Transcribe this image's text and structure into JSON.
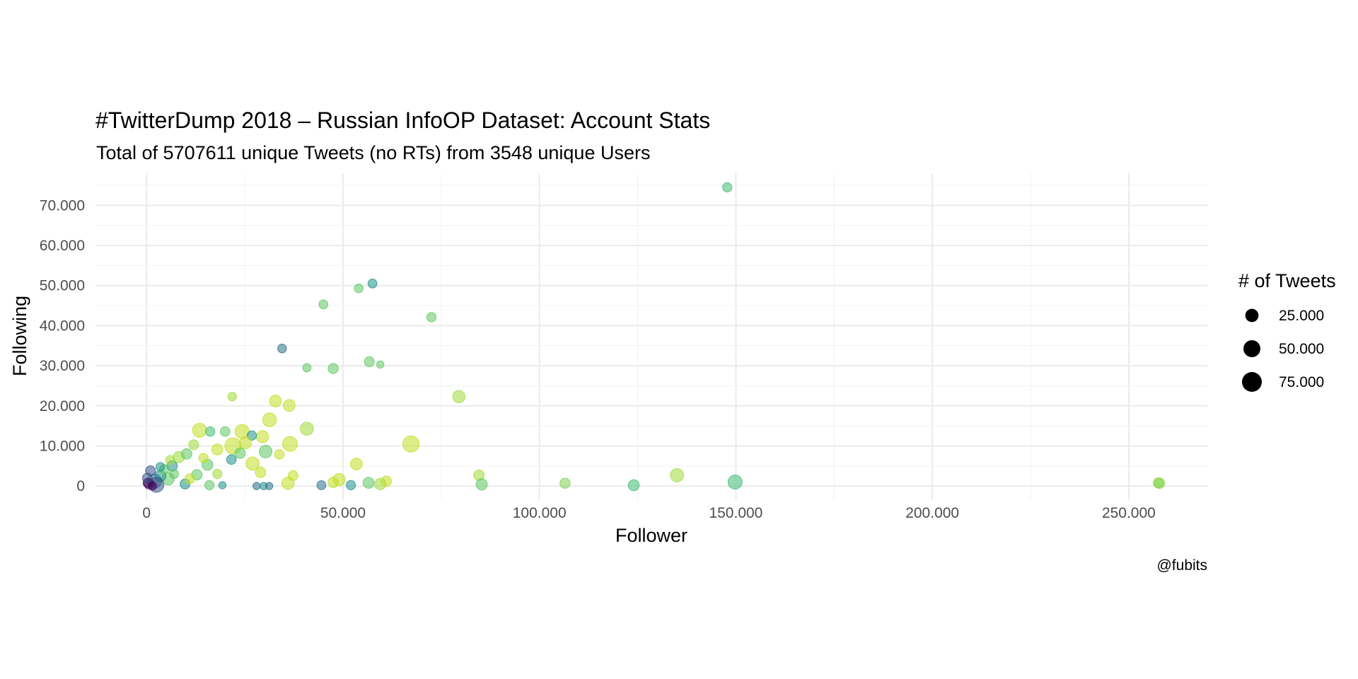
{
  "chart_data": {
    "type": "scatter",
    "title": "#TwitterDump 2018 – Russian InfoOP Dataset: Account Stats",
    "subtitle": "Total of 5707611 unique Tweets (no RTs) from 3548 unique Users",
    "xlabel": "Follower",
    "ylabel": "Following",
    "caption": "@fubits",
    "xlim": [
      -13000,
      270000
    ],
    "ylim": [
      -3500,
      78000
    ],
    "x_ticks": [
      0,
      50000,
      100000,
      150000,
      200000,
      250000
    ],
    "x_tick_labels": [
      "0",
      "50.000",
      "100.000",
      "150.000",
      "200.000",
      "250.000"
    ],
    "y_ticks": [
      0,
      10000,
      20000,
      30000,
      40000,
      50000,
      60000,
      70000
    ],
    "y_tick_labels": [
      "0",
      "10.000",
      "20.000",
      "30.000",
      "40.000",
      "50.000",
      "60.000",
      "70.000"
    ],
    "grid": true,
    "legend": {
      "title": "# of Tweets",
      "position": "right",
      "sizes": [
        25000,
        50000,
        75000
      ],
      "labels": [
        "25.000",
        "50.000",
        "75.000"
      ]
    },
    "color_scale": [
      "#440154",
      "#3b528b",
      "#21918c",
      "#5ec962",
      "#c2df23"
    ],
    "points": [
      {
        "x": 147800,
        "y": 74500,
        "size": 8000,
        "color": "#3fbc73"
      },
      {
        "x": 57500,
        "y": 50500,
        "size": 7000,
        "color": "#21918c"
      },
      {
        "x": 54000,
        "y": 49300,
        "size": 6500,
        "color": "#5ec962"
      },
      {
        "x": 45000,
        "y": 45300,
        "size": 7000,
        "color": "#5ec962"
      },
      {
        "x": 72500,
        "y": 42100,
        "size": 8000,
        "color": "#5ec962"
      },
      {
        "x": 34500,
        "y": 34300,
        "size": 6500,
        "color": "#2c728e"
      },
      {
        "x": 56700,
        "y": 31000,
        "size": 10000,
        "color": "#5ec962"
      },
      {
        "x": 59500,
        "y": 30300,
        "size": 3000,
        "color": "#5ec962"
      },
      {
        "x": 40800,
        "y": 29500,
        "size": 5500,
        "color": "#5ec962"
      },
      {
        "x": 47500,
        "y": 29300,
        "size": 11000,
        "color": "#5ec962"
      },
      {
        "x": 79500,
        "y": 22300,
        "size": 20000,
        "color": "#a0da39"
      },
      {
        "x": 21800,
        "y": 22300,
        "size": 6000,
        "color": "#a0da39"
      },
      {
        "x": 32800,
        "y": 21200,
        "size": 18000,
        "color": "#c2df23"
      },
      {
        "x": 36300,
        "y": 20100,
        "size": 18000,
        "color": "#c2df23"
      },
      {
        "x": 31300,
        "y": 16500,
        "size": 28000,
        "color": "#c2df23"
      },
      {
        "x": 40800,
        "y": 14300,
        "size": 24000,
        "color": "#a0da39"
      },
      {
        "x": 13500,
        "y": 13900,
        "size": 30000,
        "color": "#c2df23"
      },
      {
        "x": 24300,
        "y": 13600,
        "size": 30000,
        "color": "#c2df23"
      },
      {
        "x": 16200,
        "y": 13600,
        "size": 8000,
        "color": "#3fbc73"
      },
      {
        "x": 20000,
        "y": 13600,
        "size": 9000,
        "color": "#5ec962"
      },
      {
        "x": 29500,
        "y": 12300,
        "size": 20000,
        "color": "#c2df23"
      },
      {
        "x": 26800,
        "y": 12600,
        "size": 8000,
        "color": "#21918c"
      },
      {
        "x": 67300,
        "y": 10500,
        "size": 45000,
        "color": "#c2df23"
      },
      {
        "x": 36500,
        "y": 10500,
        "size": 35000,
        "color": "#c2df23"
      },
      {
        "x": 22000,
        "y": 10000,
        "size": 45000,
        "color": "#c2df23"
      },
      {
        "x": 25200,
        "y": 10800,
        "size": 20000,
        "color": "#c2df23"
      },
      {
        "x": 12000,
        "y": 10300,
        "size": 10000,
        "color": "#a0da39"
      },
      {
        "x": 30300,
        "y": 8600,
        "size": 22000,
        "color": "#5ec962"
      },
      {
        "x": 33800,
        "y": 7900,
        "size": 9000,
        "color": "#c2df23"
      },
      {
        "x": 18000,
        "y": 9100,
        "size": 14000,
        "color": "#c2df23"
      },
      {
        "x": 8200,
        "y": 7200,
        "size": 15000,
        "color": "#a0da39"
      },
      {
        "x": 10200,
        "y": 8000,
        "size": 12000,
        "color": "#5ec962"
      },
      {
        "x": 27000,
        "y": 5600,
        "size": 25000,
        "color": "#c2df23"
      },
      {
        "x": 21600,
        "y": 6600,
        "size": 9000,
        "color": "#21918c"
      },
      {
        "x": 15500,
        "y": 5300,
        "size": 14000,
        "color": "#5ec962"
      },
      {
        "x": 6500,
        "y": 5000,
        "size": 12000,
        "color": "#21918c"
      },
      {
        "x": 53400,
        "y": 5500,
        "size": 18000,
        "color": "#c2df23"
      },
      {
        "x": 12800,
        "y": 2800,
        "size": 12000,
        "color": "#5ec962"
      },
      {
        "x": 29000,
        "y": 3400,
        "size": 12000,
        "color": "#c2df23"
      },
      {
        "x": 37300,
        "y": 2600,
        "size": 10000,
        "color": "#c2df23"
      },
      {
        "x": 84600,
        "y": 2700,
        "size": 12000,
        "color": "#a0da39"
      },
      {
        "x": 135000,
        "y": 2700,
        "size": 25000,
        "color": "#a0da39"
      },
      {
        "x": 149800,
        "y": 1000,
        "size": 30000,
        "color": "#3fbc73"
      },
      {
        "x": 257500,
        "y": 800,
        "size": 10000,
        "color": "#a0da39"
      },
      {
        "x": 257800,
        "y": 700,
        "size": 12000,
        "color": "#7ad151"
      },
      {
        "x": 106500,
        "y": 700,
        "size": 11000,
        "color": "#7ad151"
      },
      {
        "x": 124000,
        "y": 200,
        "size": 14000,
        "color": "#3fbc73"
      },
      {
        "x": 85300,
        "y": 400,
        "size": 15000,
        "color": "#5ec962"
      },
      {
        "x": 49000,
        "y": 1600,
        "size": 20000,
        "color": "#c2df23"
      },
      {
        "x": 56500,
        "y": 800,
        "size": 14000,
        "color": "#5ec962"
      },
      {
        "x": 59500,
        "y": 500,
        "size": 16000,
        "color": "#a0da39"
      },
      {
        "x": 61000,
        "y": 1200,
        "size": 12000,
        "color": "#c2df23"
      },
      {
        "x": 52000,
        "y": 200,
        "size": 8000,
        "color": "#21918c"
      },
      {
        "x": 44500,
        "y": 200,
        "size": 7000,
        "color": "#2c728e"
      },
      {
        "x": 36000,
        "y": 700,
        "size": 20000,
        "color": "#c2df23"
      },
      {
        "x": 47500,
        "y": 900,
        "size": 12000,
        "color": "#c2df23"
      },
      {
        "x": 28000,
        "y": 0,
        "size": 3000,
        "color": "#2c728e"
      },
      {
        "x": 29800,
        "y": 0,
        "size": 3000,
        "color": "#21918c"
      },
      {
        "x": 31200,
        "y": 0,
        "size": 3000,
        "color": "#2c728e"
      },
      {
        "x": 19300,
        "y": 200,
        "size": 3000,
        "color": "#21918c"
      },
      {
        "x": 16000,
        "y": 200,
        "size": 8000,
        "color": "#5ec962"
      },
      {
        "x": 9800,
        "y": 500,
        "size": 10000,
        "color": "#21918c"
      },
      {
        "x": 5500,
        "y": 1800,
        "size": 20000,
        "color": "#5ec962"
      },
      {
        "x": 3500,
        "y": 2500,
        "size": 15000,
        "color": "#21918c"
      },
      {
        "x": 2000,
        "y": 1200,
        "size": 30000,
        "color": "#2c728e"
      },
      {
        "x": 1000,
        "y": 3800,
        "size": 10000,
        "color": "#3b528b"
      },
      {
        "x": 4500,
        "y": 4200,
        "size": 8000,
        "color": "#5ec962"
      },
      {
        "x": 2500,
        "y": 300,
        "size": 35000,
        "color": "#3b528b"
      },
      {
        "x": 700,
        "y": 500,
        "size": 12000,
        "color": "#482878"
      },
      {
        "x": 300,
        "y": 800,
        "size": 8000,
        "color": "#440154"
      },
      {
        "x": 200,
        "y": 2000,
        "size": 9000,
        "color": "#3b528b"
      },
      {
        "x": 1500,
        "y": 0,
        "size": 5000,
        "color": "#440154"
      },
      {
        "x": 7000,
        "y": 3000,
        "size": 7000,
        "color": "#5ec962"
      },
      {
        "x": 3500,
        "y": 4800,
        "size": 6000,
        "color": "#21918c"
      },
      {
        "x": 11000,
        "y": 1800,
        "size": 10000,
        "color": "#c2df23"
      },
      {
        "x": 18000,
        "y": 3000,
        "size": 8000,
        "color": "#a0da39"
      },
      {
        "x": 14500,
        "y": 7000,
        "size": 8000,
        "color": "#c2df23"
      },
      {
        "x": 6000,
        "y": 6500,
        "size": 7000,
        "color": "#a0da39"
      },
      {
        "x": 23800,
        "y": 8200,
        "size": 12000,
        "color": "#5ec962"
      }
    ]
  }
}
